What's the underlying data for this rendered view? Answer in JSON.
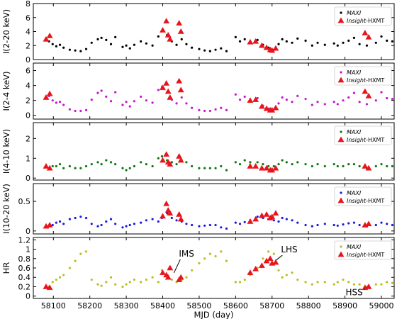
{
  "chart_data": {
    "type": "scatter",
    "xlabel": "MJD (day)",
    "xlim": [
      58045,
      59035
    ],
    "xticks": [
      58100,
      58200,
      58300,
      58400,
      58500,
      58600,
      58700,
      58800,
      58900,
      59000
    ],
    "legend_placement": "top-right",
    "panels": [
      {
        "ylabel": "I(2-20 keV)",
        "ylim": [
          0,
          8
        ],
        "yticks": [
          0,
          2,
          4,
          6,
          8
        ],
        "maxi_color": "#000000",
        "hxmt_color": "#e8141c",
        "series": [
          {
            "name": "MAXI",
            "x": [
              58088,
              58098,
              58108,
              58118,
              58128,
              58145,
              58160,
              58175,
              58190,
              58205,
              58222,
              58232,
              58245,
              58258,
              58270,
              58290,
              58300,
              58310,
              58322,
              58340,
              58355,
              58372,
              58388,
              58398,
              58412,
              58425,
              58438,
              58452,
              58465,
              58480,
              58500,
              58515,
              58530,
              58545,
              58560,
              58575,
              58600,
              58612,
              58625,
              58640,
              58660,
              58675,
              58690,
              58705,
              58718,
              58728,
              58740,
              58755,
              58770,
              58792,
              58810,
              58825,
              58845,
              58870,
              58880,
              58895,
              58910,
              58925,
              58940,
              58960,
              58985,
              59000,
              59015,
              59030
            ],
            "y": [
              2.6,
              2.2,
              1.9,
              2.1,
              1.7,
              1.4,
              1.3,
              1.2,
              1.5,
              2.4,
              2.9,
              3.1,
              2.8,
              2.2,
              3.2,
              1.8,
              2.0,
              1.6,
              2.1,
              2.6,
              2.3,
              2.0,
              3.3,
              4.1,
              3.5,
              2.6,
              2.1,
              2.9,
              2.2,
              1.7,
              1.5,
              1.3,
              1.2,
              1.4,
              1.6,
              1.2,
              3.2,
              2.6,
              2.9,
              2.4,
              2.8,
              2.1,
              1.7,
              1.4,
              2.2,
              2.9,
              2.6,
              2.4,
              3.0,
              2.7,
              2.0,
              2.4,
              2.1,
              2.3,
              2.0,
              2.4,
              2.7,
              3.1,
              2.2,
              2.0,
              2.4,
              3.3,
              2.7,
              2.6
            ]
          },
          {
            "name": "Insight-HXMT",
            "x": [
              58080,
              58090,
              58400,
              58410,
              58415,
              58420,
              58445,
              58450,
              58640,
              58655,
              58672,
              58685,
              58695,
              58700,
              58710,
              58955,
              58965
            ],
            "y": [
              2.9,
              3.4,
              4.2,
              5.5,
              3.5,
              2.9,
              5.2,
              4.0,
              2.5,
              2.6,
              2.0,
              1.7,
              1.4,
              1.3,
              1.6,
              3.8,
              3.2
            ]
          }
        ]
      },
      {
        "ylabel": "I(2-4 keV)",
        "ylim": [
          -0.5,
          7
        ],
        "yticks": [
          0,
          2,
          4,
          6
        ],
        "maxi_color": "#c219c9",
        "hxmt_color": "#e8141c",
        "series": [
          {
            "name": "MAXI",
            "x": [
              58088,
              58098,
              58108,
              58118,
              58128,
              58145,
              58160,
              58175,
              58190,
              58205,
              58222,
              58232,
              58245,
              58258,
              58270,
              58290,
              58300,
              58310,
              58322,
              58340,
              58355,
              58372,
              58388,
              58398,
              58412,
              58425,
              58438,
              58452,
              58465,
              58480,
              58500,
              58515,
              58530,
              58545,
              58560,
              58575,
              58600,
              58612,
              58625,
              58640,
              58660,
              58675,
              58690,
              58705,
              58718,
              58728,
              58740,
              58755,
              58770,
              58792,
              58810,
              58825,
              58845,
              58870,
              58880,
              58895,
              58910,
              58925,
              58940,
              58960,
              58985,
              59000,
              59015,
              59030
            ],
            "y": [
              2.6,
              2.0,
              1.7,
              1.8,
              1.4,
              0.8,
              0.6,
              0.6,
              0.7,
              2.1,
              3.0,
              3.3,
              2.5,
              1.9,
              3.1,
              1.4,
              1.8,
              1.2,
              1.9,
              2.5,
              2.0,
              1.7,
              3.4,
              3.8,
              3.1,
              2.1,
              1.6,
              2.4,
              1.6,
              1.0,
              0.7,
              0.6,
              0.6,
              0.8,
              1.0,
              0.7,
              2.8,
              2.1,
              2.5,
              1.9,
              2.3,
              1.3,
              0.9,
              0.8,
              1.6,
              2.4,
              2.1,
              1.8,
              2.6,
              2.2,
              1.4,
              1.8,
              1.5,
              1.8,
              1.5,
              2.0,
              2.4,
              3.0,
              1.8,
              1.5,
              2.0,
              3.1,
              2.3,
              2.2
            ]
          },
          {
            "name": "Insight-HXMT",
            "x": [
              58080,
              58090,
              58400,
              58410,
              58415,
              58420,
              58445,
              58450,
              58640,
              58655,
              58672,
              58685,
              58695,
              58700,
              58710,
              58955,
              58965
            ],
            "y": [
              2.4,
              2.9,
              3.7,
              4.3,
              3.2,
              2.4,
              4.6,
              3.4,
              2.0,
              2.1,
              1.2,
              0.9,
              0.7,
              0.7,
              1.0,
              3.2,
              2.6
            ]
          }
        ]
      },
      {
        "ylabel": "I(4-10 keV)",
        "ylim": [
          -0.1,
          2.8
        ],
        "yticks": [
          0,
          1,
          2
        ],
        "maxi_color": "#0f7a10",
        "hxmt_color": "#e8141c",
        "series": [
          {
            "name": "MAXI",
            "x": [
              58088,
              58098,
              58108,
              58118,
              58128,
              58145,
              58160,
              58175,
              58190,
              58205,
              58222,
              58232,
              58245,
              58258,
              58270,
              58290,
              58300,
              58310,
              58322,
              58340,
              58355,
              58372,
              58388,
              58398,
              58412,
              58425,
              58438,
              58452,
              58465,
              58480,
              58500,
              58515,
              58530,
              58545,
              58560,
              58575,
              58600,
              58612,
              58625,
              58640,
              58660,
              58675,
              58690,
              58705,
              58718,
              58728,
              58740,
              58755,
              58770,
              58792,
              58810,
              58825,
              58845,
              58870,
              58880,
              58895,
              58910,
              58925,
              58940,
              58960,
              58985,
              59000,
              59015,
              59030
            ],
            "y": [
              0.5,
              0.6,
              0.6,
              0.7,
              0.5,
              0.6,
              0.5,
              0.5,
              0.6,
              0.7,
              0.8,
              0.7,
              0.9,
              0.8,
              0.7,
              0.5,
              0.4,
              0.5,
              0.6,
              0.8,
              0.7,
              0.6,
              1.0,
              1.1,
              0.9,
              0.8,
              0.7,
              0.9,
              0.8,
              0.6,
              0.5,
              0.5,
              0.5,
              0.5,
              0.6,
              0.4,
              0.8,
              0.7,
              0.9,
              0.8,
              0.8,
              0.7,
              0.6,
              0.6,
              0.7,
              0.9,
              0.8,
              0.7,
              0.8,
              0.7,
              0.6,
              0.7,
              0.6,
              0.7,
              0.6,
              0.6,
              0.7,
              0.7,
              0.6,
              0.5,
              0.6,
              0.7,
              0.6,
              0.6
            ]
          },
          {
            "name": "Insight-HXMT",
            "x": [
              58080,
              58090,
              58400,
              58410,
              58415,
              58420,
              58445,
              58450,
              58640,
              58655,
              58672,
              58685,
              58695,
              58700,
              58710,
              58955,
              58965
            ],
            "y": [
              0.6,
              0.5,
              0.9,
              1.2,
              0.8,
              0.7,
              1.1,
              0.9,
              0.6,
              0.6,
              0.5,
              0.5,
              0.4,
              0.4,
              0.5,
              0.6,
              0.5
            ]
          }
        ]
      },
      {
        "ylabel": "I(10-20 keV)",
        "ylim": [
          -0.05,
          0.8
        ],
        "yticks": [
          0,
          0.5
        ],
        "maxi_color": "#1a1ce3",
        "hxmt_color": "#e8141c",
        "series": [
          {
            "name": "MAXI",
            "x": [
              58088,
              58098,
              58108,
              58118,
              58128,
              58145,
              58160,
              58175,
              58190,
              58205,
              58222,
              58232,
              58245,
              58258,
              58270,
              58290,
              58300,
              58310,
              58322,
              58340,
              58355,
              58372,
              58388,
              58398,
              58412,
              58425,
              58438,
              58452,
              58465,
              58480,
              58500,
              58515,
              58530,
              58545,
              58560,
              58575,
              58600,
              58612,
              58625,
              58640,
              58660,
              58675,
              58690,
              58705,
              58718,
              58728,
              58740,
              58755,
              58770,
              58792,
              58810,
              58825,
              58845,
              58870,
              58880,
              58895,
              58910,
              58925,
              58940,
              58960,
              58985,
              59000,
              59015,
              59030
            ],
            "y": [
              0.08,
              0.1,
              0.14,
              0.16,
              0.12,
              0.2,
              0.22,
              0.24,
              0.22,
              0.12,
              0.08,
              0.1,
              0.16,
              0.2,
              0.12,
              0.06,
              0.08,
              0.1,
              0.12,
              0.14,
              0.18,
              0.2,
              0.16,
              0.22,
              0.3,
              0.22,
              0.18,
              0.16,
              0.12,
              0.1,
              0.08,
              0.09,
              0.1,
              0.1,
              0.06,
              0.04,
              0.14,
              0.12,
              0.15,
              0.18,
              0.24,
              0.22,
              0.2,
              0.18,
              0.16,
              0.22,
              0.2,
              0.18,
              0.14,
              0.1,
              0.08,
              0.1,
              0.12,
              0.1,
              0.09,
              0.11,
              0.13,
              0.14,
              0.1,
              0.08,
              0.1,
              0.14,
              0.12,
              0.1
            ]
          },
          {
            "name": "Insight-HXMT",
            "x": [
              58080,
              58090,
              58400,
              58410,
              58415,
              58420,
              58445,
              58450,
              58640,
              58655,
              58672,
              58685,
              58695,
              58700,
              58710,
              58955,
              58965
            ],
            "y": [
              0.08,
              0.1,
              0.25,
              0.46,
              0.35,
              0.3,
              0.28,
              0.2,
              0.16,
              0.2,
              0.26,
              0.28,
              0.22,
              0.24,
              0.3,
              0.1,
              0.12
            ]
          }
        ]
      },
      {
        "ylabel": "HR",
        "ylim": [
          -0.05,
          1.25
        ],
        "yticks": [
          0,
          0.2,
          0.4,
          0.6,
          0.8,
          1.0,
          1.2
        ],
        "maxi_color": "#bcbd22",
        "hxmt_color": "#e8141c",
        "series": [
          {
            "name": "MAXI",
            "x": [
              58088,
              58098,
              58108,
              58118,
              58128,
              58145,
              58160,
              58175,
              58190,
              58205,
              58222,
              58232,
              58245,
              58258,
              58270,
              58290,
              58300,
              58310,
              58322,
              58340,
              58355,
              58372,
              58388,
              58398,
              58412,
              58425,
              58438,
              58452,
              58465,
              58480,
              58500,
              58515,
              58530,
              58545,
              58560,
              58575,
              58600,
              58612,
              58625,
              58640,
              58660,
              58675,
              58690,
              58705,
              58718,
              58728,
              58740,
              58755,
              58770,
              58792,
              58810,
              58825,
              58845,
              58870,
              58880,
              58895,
              58910,
              58925,
              58940,
              58960,
              58985,
              59000,
              59015,
              59030
            ],
            "y": [
              0.2,
              0.3,
              0.35,
              0.4,
              0.45,
              0.6,
              0.75,
              0.9,
              0.95,
              0.35,
              0.25,
              0.22,
              0.3,
              0.4,
              0.25,
              0.2,
              0.25,
              0.3,
              0.35,
              0.3,
              0.35,
              0.4,
              0.3,
              0.55,
              0.45,
              0.35,
              0.3,
              0.35,
              0.4,
              0.55,
              0.7,
              0.8,
              0.9,
              0.85,
              0.95,
              0.75,
              0.3,
              0.3,
              0.35,
              0.45,
              0.6,
              0.8,
              0.95,
              0.9,
              0.55,
              0.4,
              0.45,
              0.5,
              0.35,
              0.3,
              0.25,
              0.3,
              0.3,
              0.25,
              0.3,
              0.35,
              0.3,
              0.25,
              0.25,
              0.2,
              0.25,
              0.25,
              0.3,
              0.28
            ]
          },
          {
            "name": "Insight-HXMT",
            "x": [
              58080,
              58090,
              58400,
              58410,
              58415,
              58420,
              58445,
              58450,
              58640,
              58655,
              58672,
              58685,
              58695,
              58700,
              58710,
              58955,
              58965
            ],
            "y": [
              0.2,
              0.18,
              0.5,
              0.45,
              0.4,
              0.6,
              0.35,
              0.4,
              0.5,
              0.58,
              0.65,
              0.75,
              0.8,
              0.7,
              0.72,
              0.18,
              0.2
            ]
          }
        ]
      }
    ],
    "annotations": [
      {
        "text": "IMS",
        "panel": 4,
        "x": 58425,
        "y": 0.45
      },
      {
        "text": "LHS",
        "panel": 4,
        "x": 58705,
        "y": 0.72
      },
      {
        "text": "HSS",
        "panel": 4,
        "x": 58960,
        "y": 0.2
      }
    ]
  },
  "legend": {
    "maxi_label": "MAXI",
    "hxmt_italic": "Insight",
    "hxmt_rest": "-HXMT"
  }
}
